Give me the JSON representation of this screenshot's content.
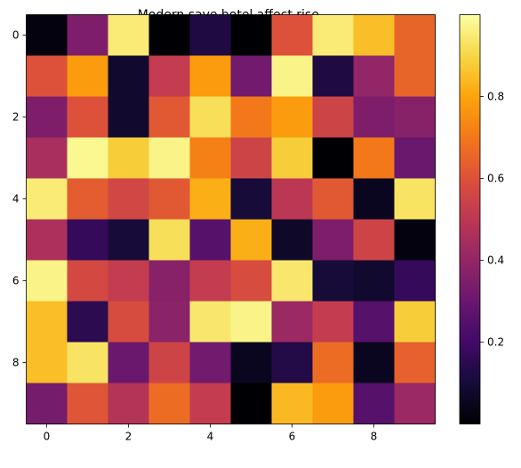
{
  "chart_data": {
    "type": "heatmap",
    "title": "Modern save hotel affect rise.",
    "xlabel": "",
    "ylabel": "",
    "colormap": "inferno",
    "grid": false,
    "x_ticks": [
      "0",
      "2",
      "4",
      "6",
      "8"
    ],
    "y_ticks": [
      "0",
      "2",
      "4",
      "6",
      "8"
    ],
    "xlim": [
      -0.5,
      9.5
    ],
    "ylim": [
      9.5,
      -0.5
    ],
    "colorbar": {
      "ticks": [
        "0.2",
        "0.4",
        "0.6",
        "0.8"
      ],
      "range": [
        0.0,
        1.0
      ]
    },
    "values": [
      [
        0.02,
        0.35,
        0.95,
        0.0,
        0.12,
        0.0,
        0.6,
        0.95,
        0.85,
        0.65
      ],
      [
        0.6,
        0.78,
        0.08,
        0.52,
        0.78,
        0.32,
        0.97,
        0.12,
        0.4,
        0.65
      ],
      [
        0.35,
        0.6,
        0.08,
        0.62,
        0.92,
        0.7,
        0.78,
        0.55,
        0.35,
        0.37
      ],
      [
        0.45,
        0.98,
        0.88,
        0.97,
        0.72,
        0.55,
        0.88,
        0.0,
        0.7,
        0.3
      ],
      [
        0.95,
        0.63,
        0.56,
        0.62,
        0.82,
        0.1,
        0.5,
        0.62,
        0.05,
        0.93
      ],
      [
        0.46,
        0.17,
        0.1,
        0.92,
        0.25,
        0.82,
        0.07,
        0.35,
        0.55,
        0.02
      ],
      [
        0.97,
        0.57,
        0.52,
        0.37,
        0.52,
        0.58,
        0.94,
        0.1,
        0.08,
        0.17
      ],
      [
        0.85,
        0.15,
        0.58,
        0.38,
        0.94,
        0.97,
        0.42,
        0.52,
        0.25,
        0.88
      ],
      [
        0.85,
        0.93,
        0.3,
        0.55,
        0.32,
        0.05,
        0.13,
        0.67,
        0.05,
        0.64
      ],
      [
        0.33,
        0.61,
        0.48,
        0.67,
        0.52,
        0.0,
        0.84,
        0.78,
        0.25,
        0.42
      ]
    ]
  }
}
